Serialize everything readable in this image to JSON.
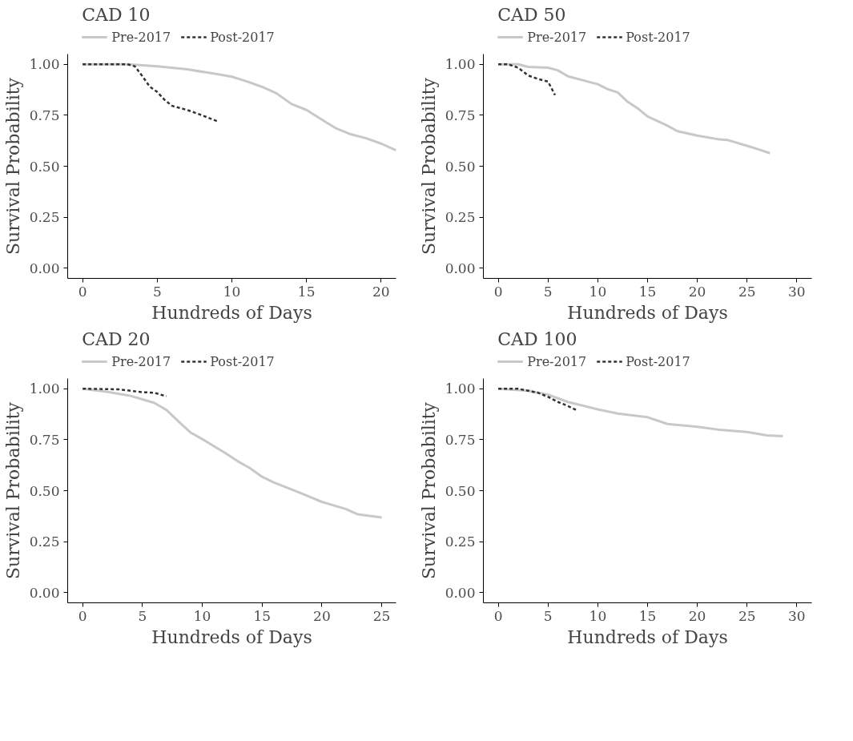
{
  "chart_data": [
    {
      "type": "line",
      "legend_title": "CAD 10",
      "legend": "top",
      "xlabel": "Hundreds of Days",
      "ylabel": "Survival Probability",
      "xlim": [
        -1,
        21
      ],
      "ylim": [
        -0.05,
        1.05
      ],
      "xticks": [
        0,
        5,
        10,
        15,
        20
      ],
      "yticks": [
        {
          "value": 0,
          "label": "0.00"
        },
        {
          "value": 0.25,
          "label": "0.25"
        },
        {
          "value": 0.5,
          "label": "0.50"
        },
        {
          "value": 0.75,
          "label": "0.75"
        },
        {
          "value": 1,
          "label": "1.00"
        }
      ],
      "series": [
        {
          "name": "Pre-2017",
          "color": "#c8c8c8",
          "line_style": "solid",
          "x": [
            0,
            3,
            5,
            7,
            9,
            10,
            11,
            12,
            13,
            14,
            15,
            16,
            17,
            18,
            19,
            20,
            21
          ],
          "values": [
            1.0,
            1.0,
            0.99,
            0.975,
            0.952,
            0.939,
            0.916,
            0.89,
            0.857,
            0.805,
            0.776,
            0.73,
            0.685,
            0.656,
            0.637,
            0.611,
            0.578
          ]
        },
        {
          "name": "Post-2017",
          "color": "#333333",
          "line_style": "dashed",
          "x": [
            0,
            3,
            3.5,
            4,
            4.5,
            5,
            5.5,
            6,
            7,
            8,
            9
          ],
          "values": [
            1.0,
            1.0,
            0.99,
            0.942,
            0.89,
            0.864,
            0.825,
            0.796,
            0.776,
            0.75,
            0.721
          ]
        }
      ]
    },
    {
      "type": "line",
      "legend_title": "CAD 50",
      "legend": "top",
      "xlabel": "Hundreds of Days",
      "ylabel": "Survival Probability",
      "xlim": [
        -1.5,
        31.5
      ],
      "ylim": [
        -0.05,
        1.05
      ],
      "xticks": [
        0,
        5,
        10,
        15,
        20,
        25,
        30
      ],
      "yticks": [
        {
          "value": 0,
          "label": "0.00"
        },
        {
          "value": 0.25,
          "label": "0.25"
        },
        {
          "value": 0.5,
          "label": "0.50"
        },
        {
          "value": 0.75,
          "label": "0.75"
        },
        {
          "value": 1,
          "label": "1.00"
        }
      ],
      "series": [
        {
          "name": "Pre-2017",
          "color": "#c8c8c8",
          "line_style": "solid",
          "x": [
            0,
            2,
            3,
            5,
            6,
            7,
            10,
            11,
            12,
            13,
            14,
            15,
            17,
            18,
            20,
            22,
            23,
            25,
            26,
            27.3
          ],
          "values": [
            1.0,
            1.0,
            0.987,
            0.983,
            0.97,
            0.941,
            0.902,
            0.878,
            0.862,
            0.816,
            0.784,
            0.744,
            0.699,
            0.672,
            0.65,
            0.633,
            0.629,
            0.6,
            0.585,
            0.564
          ]
        },
        {
          "name": "Post-2017",
          "color": "#333333",
          "line_style": "dashed",
          "x": [
            0,
            1,
            2,
            3,
            4,
            5,
            5.7
          ],
          "values": [
            1.0,
            1.0,
            0.983,
            0.945,
            0.928,
            0.915,
            0.849
          ]
        }
      ]
    },
    {
      "type": "line",
      "legend_title": "CAD 20",
      "legend": "top",
      "xlabel": "Hundreds of Days",
      "ylabel": "Survival Probability",
      "xlim": [
        -1.25,
        26.2
      ],
      "ylim": [
        -0.05,
        1.05
      ],
      "xticks": [
        0,
        5,
        10,
        15,
        20,
        25
      ],
      "yticks": [
        {
          "value": 0,
          "label": "0.00"
        },
        {
          "value": 0.25,
          "label": "0.25"
        },
        {
          "value": 0.5,
          "label": "0.50"
        },
        {
          "value": 0.75,
          "label": "0.75"
        },
        {
          "value": 1,
          "label": "1.00"
        }
      ],
      "series": [
        {
          "name": "Pre-2017",
          "color": "#c8c8c8",
          "line_style": "solid",
          "x": [
            0,
            2,
            4,
            5,
            6,
            7,
            8,
            9,
            10,
            12,
            13,
            14,
            15,
            16,
            18,
            20,
            22,
            23,
            25
          ],
          "values": [
            1.0,
            0.985,
            0.965,
            0.948,
            0.93,
            0.896,
            0.84,
            0.786,
            0.753,
            0.682,
            0.643,
            0.61,
            0.568,
            0.54,
            0.494,
            0.445,
            0.41,
            0.384,
            0.368
          ]
        },
        {
          "name": "Post-2017",
          "color": "#333333",
          "line_style": "dashed",
          "x": [
            0,
            3,
            5,
            6,
            7
          ],
          "values": [
            1.0,
            0.997,
            0.983,
            0.98,
            0.963
          ]
        }
      ]
    },
    {
      "type": "line",
      "legend_title": "CAD 100",
      "legend": "top",
      "xlabel": "Hundreds of Days",
      "ylabel": "Survival Probability",
      "xlim": [
        -1.5,
        31.5
      ],
      "ylim": [
        -0.05,
        1.05
      ],
      "xticks": [
        0,
        5,
        10,
        15,
        20,
        25,
        30
      ],
      "yticks": [
        {
          "value": 0,
          "label": "0.00"
        },
        {
          "value": 0.25,
          "label": "0.25"
        },
        {
          "value": 0.5,
          "label": "0.50"
        },
        {
          "value": 0.75,
          "label": "0.75"
        },
        {
          "value": 1,
          "label": "1.00"
        }
      ],
      "series": [
        {
          "name": "Pre-2017",
          "color": "#c8c8c8",
          "line_style": "solid",
          "x": [
            0,
            3,
            5,
            7,
            10,
            12,
            15,
            17,
            20,
            22,
            25,
            27,
            28.6
          ],
          "values": [
            1.0,
            0.99,
            0.971,
            0.935,
            0.899,
            0.878,
            0.86,
            0.827,
            0.813,
            0.8,
            0.788,
            0.771,
            0.767
          ]
        },
        {
          "name": "Post-2017",
          "color": "#333333",
          "line_style": "dashed",
          "x": [
            0,
            2,
            3,
            4,
            5,
            6,
            7,
            8
          ],
          "values": [
            1.0,
            1.0,
            0.99,
            0.98,
            0.96,
            0.935,
            0.915,
            0.892
          ]
        }
      ]
    }
  ]
}
